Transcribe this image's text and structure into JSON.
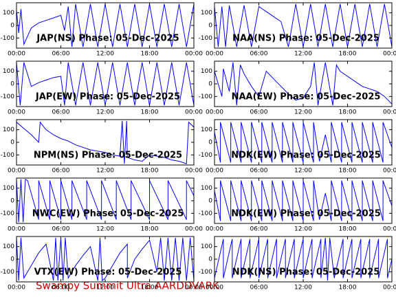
{
  "chart_data": [
    {
      "type": "line",
      "title": "JAP(NS) Phase: 05-Dec-2025",
      "color": "#0000ff",
      "xlim": [
        0,
        24
      ],
      "ylim": [
        -180,
        180
      ],
      "xticks": [
        {
          "value": 0,
          "label": "00:00"
        },
        {
          "value": 6,
          "label": "06:00"
        },
        {
          "value": 12,
          "label": "12:00"
        },
        {
          "value": 18,
          "label": "18:00"
        },
        {
          "value": 24,
          "label": "00:00"
        }
      ],
      "yticks": [
        -100,
        0,
        100
      ],
      "x": [
        0,
        0.3,
        0.6,
        1,
        2,
        3,
        4,
        5,
        6,
        6.5,
        7,
        7.5,
        8,
        9,
        10,
        11,
        12,
        13,
        14,
        15,
        16,
        17,
        18,
        19,
        20,
        21,
        22,
        23,
        24
      ],
      "values": [
        120,
        -60,
        130,
        -150,
        -20,
        20,
        40,
        60,
        80,
        -40,
        150,
        -170,
        170,
        -170,
        170,
        -170,
        170,
        -170,
        170,
        -170,
        170,
        -170,
        170,
        -170,
        170,
        -170,
        170,
        -170,
        170
      ]
    },
    {
      "type": "line",
      "title": "NAA(NS) Phase: 05-Dec-2025",
      "color": "#0000ff",
      "xlim": [
        0,
        24
      ],
      "ylim": [
        -180,
        180
      ],
      "xticks": [
        {
          "value": 0,
          "label": "00:00"
        },
        {
          "value": 6,
          "label": "06:00"
        },
        {
          "value": 12,
          "label": "12:00"
        },
        {
          "value": 18,
          "label": "18:00"
        },
        {
          "value": 24,
          "label": "00:00"
        }
      ],
      "yticks": [
        -100,
        0,
        100
      ],
      "x": [
        0,
        0.5,
        1,
        1.5,
        2,
        3,
        4,
        5,
        6,
        7,
        8,
        9,
        10,
        11,
        12,
        13,
        14,
        15,
        16,
        17,
        18,
        19,
        20,
        21,
        22,
        23,
        24
      ],
      "values": [
        150,
        -170,
        150,
        -170,
        160,
        -170,
        160,
        -170,
        150,
        110,
        70,
        30,
        -170,
        170,
        -170,
        170,
        -170,
        170,
        -170,
        170,
        -170,
        170,
        -170,
        170,
        -170,
        170,
        -170
      ]
    },
    {
      "type": "line",
      "title": "JAP(EW) Phase: 05-Dec-2025",
      "color": "#0000ff",
      "xlim": [
        0,
        24
      ],
      "ylim": [
        -180,
        180
      ],
      "xticks": [
        {
          "value": 0,
          "label": "00:00"
        },
        {
          "value": 6,
          "label": "06:00"
        },
        {
          "value": 12,
          "label": "12:00"
        },
        {
          "value": 18,
          "label": "18:00"
        },
        {
          "value": 24,
          "label": "00:00"
        }
      ],
      "yticks": [
        -100,
        0,
        100
      ],
      "x": [
        0,
        0.5,
        1,
        2,
        3,
        4,
        5,
        6,
        6.5,
        7,
        8,
        9,
        10,
        11,
        12,
        13,
        14,
        15,
        16,
        17,
        18,
        19,
        20,
        21,
        22,
        23,
        24
      ],
      "values": [
        170,
        -170,
        170,
        -20,
        10,
        30,
        50,
        60,
        -170,
        170,
        -170,
        170,
        -170,
        170,
        -170,
        170,
        -170,
        170,
        -170,
        170,
        -170,
        170,
        -170,
        170,
        -170,
        170,
        -170
      ]
    },
    {
      "type": "line",
      "title": "NAA(EW) Phase: 05-Dec-2025",
      "color": "#0000ff",
      "xlim": [
        0,
        24
      ],
      "ylim": [
        -180,
        180
      ],
      "xticks": [
        {
          "value": 0,
          "label": "00:00"
        },
        {
          "value": 6,
          "label": "06:00"
        },
        {
          "value": 12,
          "label": "12:00"
        },
        {
          "value": 18,
          "label": "18:00"
        },
        {
          "value": 24,
          "label": "00:00"
        }
      ],
      "yticks": [
        -100,
        0,
        100
      ],
      "x": [
        0,
        1,
        1.2,
        2,
        2.5,
        3,
        3.5,
        4,
        5,
        6,
        7,
        8,
        9,
        10,
        11,
        12,
        13,
        13.5,
        14,
        15,
        16,
        16.5,
        17,
        18,
        19,
        20,
        21,
        22,
        23,
        24
      ],
      "values": [
        100,
        -100,
        120,
        -60,
        170,
        -170,
        150,
        80,
        -20,
        -100,
        100,
        40,
        -20,
        -80,
        -130,
        -110,
        -20,
        170,
        -170,
        170,
        -170,
        150,
        100,
        60,
        20,
        -20,
        -40,
        -60,
        -100,
        -160
      ]
    },
    {
      "type": "line",
      "title": "NPM(NS) Phase: 05-Dec-2025",
      "color": "#0000ff",
      "xlim": [
        0,
        24
      ],
      "ylim": [
        -180,
        180
      ],
      "xticks": [
        {
          "value": 0,
          "label": "00:00"
        },
        {
          "value": 6,
          "label": "06:00"
        },
        {
          "value": 12,
          "label": "12:00"
        },
        {
          "value": 18,
          "label": "18:00"
        },
        {
          "value": 24,
          "label": "00:00"
        }
      ],
      "yticks": [
        -100,
        0,
        100
      ],
      "x": [
        0,
        1,
        2,
        3,
        3.2,
        4,
        5,
        6,
        7,
        8,
        9,
        10,
        11,
        12,
        13,
        14,
        14.3,
        14.6,
        14.9,
        15,
        16,
        17,
        18,
        19,
        20,
        21,
        22,
        23,
        23.3,
        24
      ],
      "values": [
        160,
        110,
        60,
        0,
        160,
        100,
        60,
        30,
        10,
        -20,
        -40,
        -60,
        -70,
        -80,
        -100,
        -110,
        170,
        -170,
        170,
        -120,
        -140,
        -150,
        -100,
        -110,
        -120,
        -140,
        -150,
        -170,
        160,
        120
      ]
    },
    {
      "type": "line",
      "title": "NDK(EW) Phase: 05-Dec-2025",
      "color": "#0000ff",
      "xlim": [
        0,
        24
      ],
      "ylim": [
        -180,
        180
      ],
      "xticks": [
        {
          "value": 0,
          "label": "00:00"
        },
        {
          "value": 6,
          "label": "06:00"
        },
        {
          "value": 12,
          "label": "12:00"
        },
        {
          "value": 18,
          "label": "18:00"
        },
        {
          "value": 24,
          "label": "00:00"
        }
      ],
      "yticks": [
        -100,
        0,
        100
      ],
      "x": [
        0,
        0.8,
        0.8,
        2.2,
        2.2,
        3.6,
        3.6,
        5,
        5,
        6.4,
        6.4,
        7.8,
        7.8,
        9.2,
        9.2,
        10.6,
        10.6,
        12,
        12,
        13.4,
        13.4,
        14.2,
        15,
        15.8,
        15.8,
        17.2,
        17.2,
        18.6,
        18.6,
        20,
        20,
        21.4,
        21.4,
        22.8,
        22.8,
        24
      ],
      "values": [
        80,
        -160,
        160,
        -160,
        160,
        -160,
        160,
        -160,
        160,
        -160,
        160,
        -160,
        160,
        -160,
        160,
        -160,
        160,
        -160,
        160,
        -160,
        160,
        -150,
        60,
        -160,
        160,
        -160,
        160,
        -160,
        160,
        -160,
        160,
        -160,
        160,
        -160,
        160,
        -40
      ]
    },
    {
      "type": "line",
      "title": "NWC(EW) Phase: 05-Dec-2025",
      "color": "#0000ff",
      "xlim": [
        0,
        24
      ],
      "ylim": [
        -180,
        180
      ],
      "xticks": [
        {
          "value": 0,
          "label": "00:00"
        },
        {
          "value": 6,
          "label": "06:00"
        },
        {
          "value": 12,
          "label": "12:00"
        },
        {
          "value": 18,
          "label": "18:00"
        },
        {
          "value": 24,
          "label": "00:00"
        }
      ],
      "yticks": [
        -100,
        0,
        100
      ],
      "x": [
        0,
        0.3,
        0.6,
        0.9,
        1.2,
        1.5,
        3,
        3,
        4.5,
        4.5,
        6,
        6,
        7.5,
        7.5,
        9.5,
        9.5,
        11.5,
        11.5,
        13.5,
        13.5,
        15.5,
        15.5,
        18,
        18,
        20.5,
        20.5,
        23,
        23,
        24
      ],
      "values": [
        170,
        -170,
        170,
        -170,
        170,
        160,
        -150,
        160,
        -150,
        160,
        -150,
        160,
        -150,
        160,
        -150,
        160,
        -150,
        160,
        -150,
        160,
        -150,
        160,
        -150,
        160,
        -150,
        160,
        -150,
        160,
        40
      ]
    },
    {
      "type": "line",
      "title": "NDK(EW) Phase: 05-Dec-2025",
      "color": "#0000ff",
      "xlim": [
        0,
        24
      ],
      "ylim": [
        -180,
        180
      ],
      "xticks": [
        {
          "value": 0,
          "label": "00:00"
        },
        {
          "value": 6,
          "label": "06:00"
        },
        {
          "value": 12,
          "label": "12:00"
        },
        {
          "value": 18,
          "label": "18:00"
        },
        {
          "value": 24,
          "label": "00:00"
        }
      ],
      "yticks": [
        -100,
        0,
        100
      ],
      "x": [
        0,
        0.8,
        0.8,
        2.2,
        2.2,
        3.6,
        3.6,
        5,
        5,
        6.4,
        6.4,
        7.8,
        7.8,
        9.2,
        9.2,
        10.6,
        10.6,
        12,
        12,
        13.4,
        13.4,
        14.2,
        15,
        15.8,
        15.8,
        17.2,
        17.2,
        18.6,
        18.6,
        20,
        20,
        21.4,
        21.4,
        22.8,
        22.8,
        24
      ],
      "values": [
        80,
        -160,
        160,
        -160,
        160,
        -160,
        160,
        -160,
        160,
        -160,
        160,
        -160,
        160,
        -160,
        160,
        -160,
        160,
        -160,
        160,
        -160,
        160,
        -150,
        60,
        -160,
        160,
        -160,
        160,
        -160,
        160,
        -160,
        160,
        -160,
        160,
        -160,
        160,
        -40
      ]
    },
    {
      "type": "line",
      "title": "VTX(EW) Phase: 05-Dec-2025",
      "color": "#0000ff",
      "xlim": [
        0,
        24
      ],
      "ylim": [
        -180,
        180
      ],
      "xticks": [
        {
          "value": 0,
          "label": "00:00"
        },
        {
          "value": 6,
          "label": "06:00"
        },
        {
          "value": 12,
          "label": "12:00"
        },
        {
          "value": 18,
          "label": "18:00"
        },
        {
          "value": 24,
          "label": "00:00"
        }
      ],
      "yticks": [
        -100,
        0,
        100
      ],
      "x": [
        0,
        0.3,
        0.6,
        1,
        2,
        3,
        4,
        5,
        5.3,
        5.6,
        6,
        6.3,
        6.6,
        7,
        8,
        9,
        10,
        11,
        11.3,
        11.6,
        12,
        13,
        14,
        15,
        15,
        16,
        17,
        18,
        19,
        19.5,
        20,
        20.5,
        21,
        21.5,
        22,
        22.5,
        23,
        23.5,
        24
      ],
      "values": [
        170,
        -170,
        170,
        -150,
        -50,
        50,
        120,
        -170,
        170,
        -170,
        170,
        -170,
        170,
        -150,
        -50,
        30,
        100,
        -170,
        170,
        -170,
        -150,
        -50,
        50,
        120,
        -150,
        0,
        80,
        150,
        -100,
        170,
        -170,
        170,
        -170,
        170,
        -170,
        170,
        -170,
        170,
        -170
      ]
    },
    {
      "type": "line",
      "title": "NDK(NS) Phase: 05-Dec-2025",
      "color": "#0000ff",
      "xlim": [
        0,
        24
      ],
      "ylim": [
        -180,
        180
      ],
      "xticks": [
        {
          "value": 0,
          "label": "00:00"
        },
        {
          "value": 6,
          "label": "06:00"
        },
        {
          "value": 12,
          "label": "12:00"
        },
        {
          "value": 18,
          "label": "18:00"
        },
        {
          "value": 24,
          "label": "00:00"
        }
      ],
      "yticks": [
        -100,
        0,
        100
      ],
      "x": [
        0,
        1.2,
        1.2,
        2.4,
        2.4,
        3.6,
        3.6,
        4.8,
        4.8,
        6,
        6,
        7.2,
        7.2,
        8.4,
        8.4,
        9.6,
        9.6,
        10.8,
        10.8,
        12,
        12,
        13.2,
        13.2,
        14.4,
        14.4,
        15,
        15.3,
        15.6,
        16.2,
        17.4,
        17.4,
        18.6,
        18.6,
        19.8,
        19.8,
        21,
        21,
        22.2,
        22.2,
        23.4,
        23.4,
        24
      ],
      "values": [
        -150,
        160,
        -150,
        160,
        -150,
        160,
        -150,
        160,
        -150,
        160,
        -150,
        160,
        -150,
        160,
        -150,
        160,
        -150,
        160,
        -150,
        160,
        -150,
        160,
        -150,
        160,
        -150,
        170,
        -170,
        170,
        -150,
        160,
        -150,
        160,
        -150,
        160,
        -150,
        160,
        -150,
        160,
        -150,
        160,
        -150,
        0
      ]
    }
  ],
  "footer": "Swampy Summit Ultra AARDDVARK"
}
